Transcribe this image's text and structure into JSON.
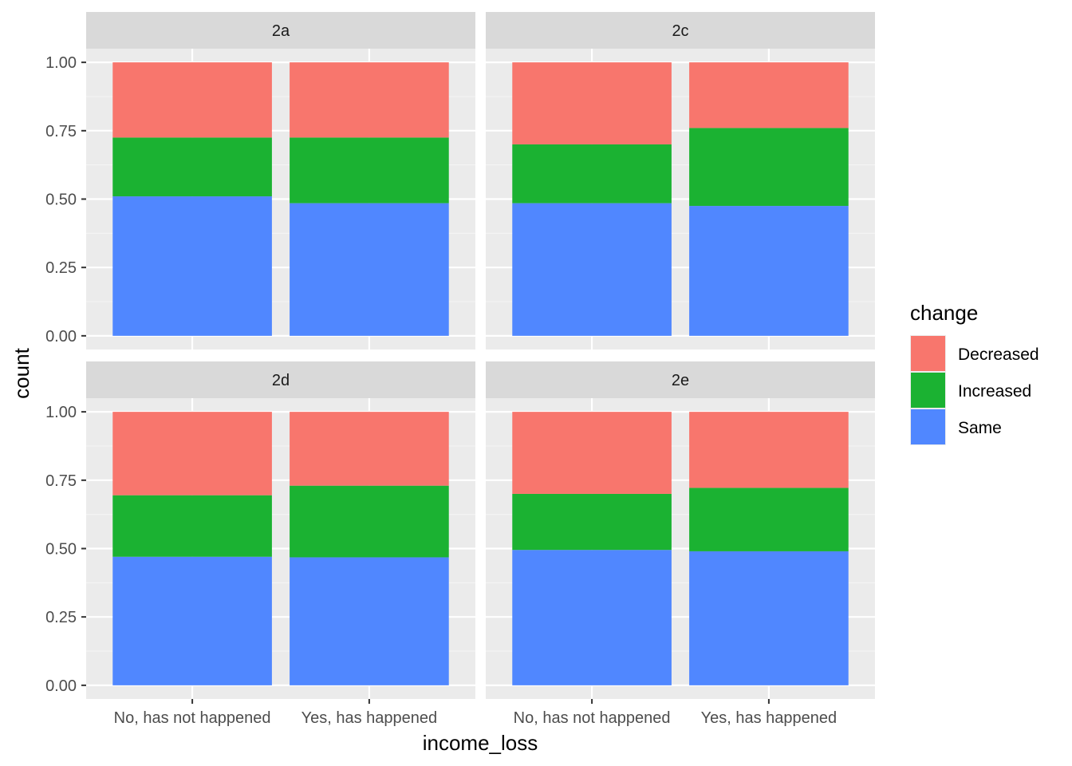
{
  "chart_data": {
    "type": "bar",
    "stacked": true,
    "facet_by": "panel",
    "xlabel": "income_loss",
    "ylabel": "count",
    "ylim": [
      0,
      1
    ],
    "y_ticks": [
      "0.00",
      "0.25",
      "0.50",
      "0.75",
      "1.00"
    ],
    "categories": [
      "No, has not happened",
      "Yes, has happened"
    ],
    "legend": {
      "title": "change",
      "placement": "right",
      "entries": [
        {
          "name": "Decreased",
          "color": "#F8766D"
        },
        {
          "name": "Increased",
          "color": "#1BB232"
        },
        {
          "name": "Same",
          "color": "#5087FF"
        }
      ]
    },
    "stack_order_bottom_to_top": [
      "Same",
      "Increased",
      "Decreased"
    ],
    "panels": [
      {
        "label": "2a",
        "series": [
          {
            "name": "Same",
            "values": [
              0.51,
              0.485
            ]
          },
          {
            "name": "Increased",
            "values": [
              0.215,
              0.24
            ]
          },
          {
            "name": "Decreased",
            "values": [
              0.275,
              0.275
            ]
          }
        ]
      },
      {
        "label": "2c",
        "series": [
          {
            "name": "Same",
            "values": [
              0.485,
              0.475
            ]
          },
          {
            "name": "Increased",
            "values": [
              0.215,
              0.285
            ]
          },
          {
            "name": "Decreased",
            "values": [
              0.3,
              0.24
            ]
          }
        ]
      },
      {
        "label": "2d",
        "series": [
          {
            "name": "Same",
            "values": [
              0.47,
              0.468
            ]
          },
          {
            "name": "Increased",
            "values": [
              0.225,
              0.262
            ]
          },
          {
            "name": "Decreased",
            "values": [
              0.305,
              0.27
            ]
          }
        ]
      },
      {
        "label": "2e",
        "series": [
          {
            "name": "Same",
            "values": [
              0.495,
              0.49
            ]
          },
          {
            "name": "Increased",
            "values": [
              0.205,
              0.232
            ]
          },
          {
            "name": "Decreased",
            "values": [
              0.3,
              0.278
            ]
          }
        ]
      }
    ],
    "colors": {
      "panel_background": "#EBEBEB",
      "strip_background": "#D9D9D9",
      "grid_major": "#FFFFFF",
      "grid_minor": "#F4F4F4",
      "text": "#4D4D4D",
      "title_text": "#000000"
    }
  }
}
